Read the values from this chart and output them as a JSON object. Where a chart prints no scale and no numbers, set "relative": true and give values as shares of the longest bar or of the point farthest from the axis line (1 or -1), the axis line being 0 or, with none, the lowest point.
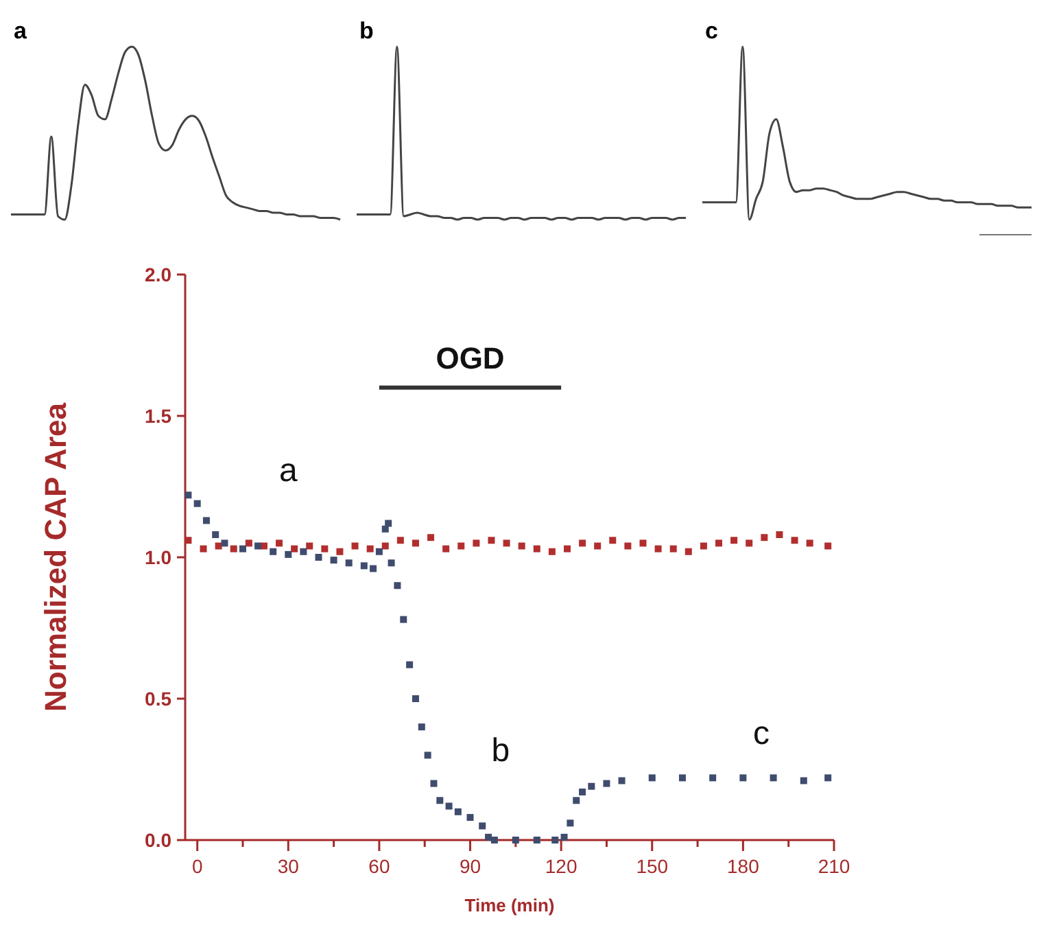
{
  "chart_data": [
    {
      "type": "line",
      "title": "a",
      "relative": true,
      "categories": [
        null,
        null,
        null,
        null,
        null,
        null,
        null,
        null,
        null,
        null,
        null,
        null,
        null,
        null,
        null,
        null,
        null,
        null,
        null,
        null,
        null,
        null,
        null,
        null,
        null,
        null,
        null,
        null,
        null,
        null,
        null,
        null,
        null,
        null,
        null,
        null,
        null,
        null,
        null,
        null,
        null,
        null,
        null,
        null,
        null,
        null,
        null,
        null,
        null,
        null
      ],
      "series": [
        {
          "color": "#444444",
          "values": [
            0.03,
            0.03,
            0.03,
            0.03,
            0.03,
            0.03,
            0.48,
            0.02,
            0.0,
            0.2,
            0.55,
            0.78,
            0.72,
            0.6,
            0.58,
            0.7,
            0.85,
            0.97,
            1.0,
            0.95,
            0.8,
            0.6,
            0.44,
            0.4,
            0.43,
            0.52,
            0.58,
            0.6,
            0.57,
            0.48,
            0.36,
            0.25,
            0.14,
            0.1,
            0.08,
            0.07,
            0.06,
            0.05,
            0.05,
            0.04,
            0.04,
            0.03,
            0.03,
            0.02,
            0.02,
            0.02,
            0.01,
            0.01,
            0.01,
            0.0
          ]
        }
      ]
    },
    {
      "type": "line",
      "title": "b",
      "relative": true,
      "categories": [
        null,
        null,
        null,
        null,
        null,
        null,
        null,
        null,
        null,
        null,
        null,
        null,
        null,
        null,
        null,
        null,
        null,
        null,
        null,
        null,
        null,
        null,
        null,
        null,
        null,
        null,
        null,
        null,
        null,
        null,
        null,
        null,
        null,
        null,
        null,
        null,
        null,
        null,
        null,
        null,
        null,
        null,
        null,
        null,
        null,
        null,
        null,
        null,
        null,
        null
      ],
      "series": [
        {
          "color": "#444444",
          "values": [
            0.03,
            0.03,
            0.03,
            0.03,
            0.03,
            0.03,
            1.0,
            0.02,
            0.03,
            0.04,
            0.03,
            0.02,
            0.02,
            0.01,
            0.01,
            0.0,
            0.01,
            0.01,
            0.0,
            0.01,
            0.01,
            0.01,
            0.0,
            0.01,
            0.01,
            0.0,
            0.01,
            0.01,
            0.01,
            0.0,
            0.01,
            0.01,
            0.0,
            0.01,
            0.01,
            0.01,
            0.0,
            0.01,
            0.01,
            0.01,
            0.0,
            0.01,
            0.01,
            0.0,
            0.01,
            0.01,
            0.01,
            0.0,
            0.01,
            0.01
          ]
        }
      ]
    },
    {
      "type": "line",
      "title": "c",
      "relative": true,
      "categories": [
        null,
        null,
        null,
        null,
        null,
        null,
        null,
        null,
        null,
        null,
        null,
        null,
        null,
        null,
        null,
        null,
        null,
        null,
        null,
        null,
        null,
        null,
        null,
        null,
        null,
        null,
        null,
        null,
        null,
        null,
        null,
        null,
        null,
        null,
        null,
        null,
        null,
        null,
        null,
        null,
        null,
        null,
        null,
        null,
        null,
        null,
        null,
        null,
        null,
        null
      ],
      "series": [
        {
          "color": "#444444",
          "values": [
            0.1,
            0.1,
            0.1,
            0.1,
            0.1,
            0.1,
            1.0,
            0.0,
            0.12,
            0.22,
            0.5,
            0.58,
            0.42,
            0.22,
            0.16,
            0.17,
            0.17,
            0.18,
            0.18,
            0.17,
            0.16,
            0.14,
            0.13,
            0.12,
            0.12,
            0.12,
            0.13,
            0.14,
            0.15,
            0.16,
            0.16,
            0.15,
            0.14,
            0.13,
            0.12,
            0.12,
            0.11,
            0.11,
            0.1,
            0.1,
            0.1,
            0.09,
            0.09,
            0.09,
            0.08,
            0.08,
            0.08,
            0.07,
            0.07,
            0.07
          ]
        }
      ]
    },
    {
      "type": "scatter",
      "xlabel": "Time (min)",
      "ylabel": "Normalized CAP Area",
      "xlim": [
        -4,
        210
      ],
      "ylim": [
        0,
        2
      ],
      "xticks": [
        0,
        {
          "value": 15,
          "label": null
        },
        30,
        {
          "value": 45,
          "label": null
        },
        60,
        {
          "value": 75,
          "label": null
        },
        90,
        {
          "value": 105,
          "label": null
        },
        120,
        {
          "value": 135,
          "label": null
        },
        150,
        {
          "value": 165,
          "label": null
        },
        180,
        {
          "value": 195,
          "label": null
        },
        210
      ],
      "yticks": [
        {
          "value": 0,
          "label": "0.0"
        },
        0.5,
        {
          "value": 1,
          "label": "1.0"
        },
        1.5,
        {
          "value": 2,
          "label": "2.0"
        }
      ],
      "marker": "square",
      "series": [
        {
          "color": "#b22e2e",
          "x": [
            -3,
            2,
            7,
            12,
            17,
            22,
            27,
            32,
            37,
            42,
            47,
            52,
            57,
            62,
            67,
            72,
            77,
            82,
            87,
            92,
            97,
            102,
            107,
            112,
            117,
            122,
            127,
            132,
            137,
            142,
            147,
            152,
            157,
            162,
            167,
            172,
            177,
            182,
            187,
            192,
            197,
            202,
            208
          ],
          "values": [
            1.06,
            1.03,
            1.04,
            1.03,
            1.05,
            1.04,
            1.05,
            1.03,
            1.04,
            1.03,
            1.02,
            1.04,
            1.03,
            1.04,
            1.06,
            1.05,
            1.07,
            1.03,
            1.04,
            1.05,
            1.06,
            1.05,
            1.04,
            1.03,
            1.02,
            1.03,
            1.05,
            1.04,
            1.06,
            1.04,
            1.05,
            1.03,
            1.03,
            1.02,
            1.04,
            1.05,
            1.06,
            1.05,
            1.07,
            1.08,
            1.06,
            1.05,
            1.04
          ]
        },
        {
          "color": "#3f4c6e",
          "x": [
            -3,
            0,
            3,
            6,
            9,
            15,
            20,
            25,
            30,
            35,
            40,
            45,
            50,
            55,
            58,
            60,
            62,
            63,
            64,
            66,
            68,
            70,
            72,
            74,
            76,
            78,
            80,
            83,
            86,
            90,
            94,
            96,
            98,
            105,
            112,
            118,
            121,
            123,
            125,
            127,
            130,
            135,
            140,
            150,
            160,
            170,
            180,
            190,
            200,
            208
          ],
          "values": [
            1.22,
            1.19,
            1.13,
            1.08,
            1.05,
            1.03,
            1.04,
            1.02,
            1.01,
            1.02,
            1.0,
            0.99,
            0.98,
            0.97,
            0.96,
            1.02,
            1.1,
            1.12,
            0.98,
            0.9,
            0.78,
            0.62,
            0.5,
            0.4,
            0.3,
            0.2,
            0.14,
            0.12,
            0.1,
            0.08,
            0.05,
            0.01,
            0,
            0,
            0,
            0,
            0.01,
            0.06,
            0.14,
            0.17,
            0.19,
            0.2,
            0.21,
            0.22,
            0.22,
            0.22,
            0.22,
            0.22,
            0.21,
            0.22
          ]
        },
        {
          "type": "line",
          "color": "#333333",
          "marker": "none",
          "x": [
            60,
            120
          ],
          "values": [
            1.6,
            1.6
          ]
        }
      ],
      "annotations": [
        "a",
        "b",
        "c",
        {
          "text": "OGD",
          "x": 90,
          "y": 1.6
        }
      ]
    }
  ]
}
